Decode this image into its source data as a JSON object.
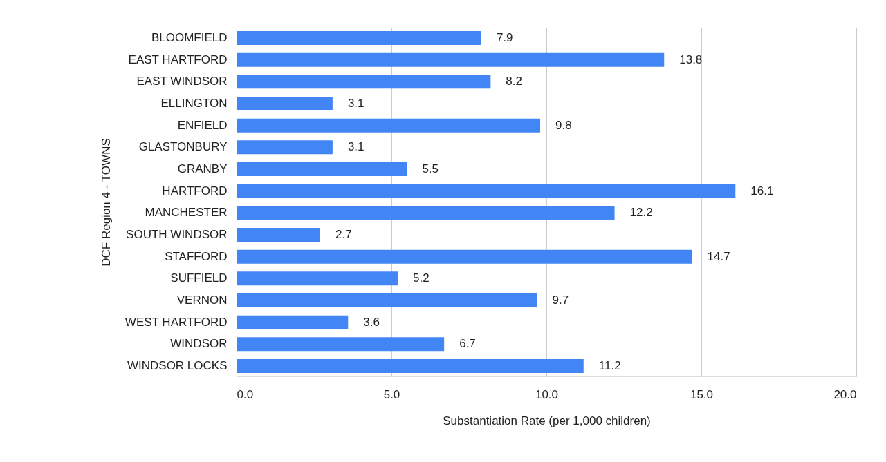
{
  "chart_data": {
    "type": "bar",
    "orientation": "horizontal",
    "xlabel": "Substantiation Rate (per 1,000 children)",
    "ylabel": "DCF Region 4 - TOWNS",
    "categories": [
      "BLOOMFIELD",
      "EAST HARTFORD",
      "EAST WINDSOR",
      "ELLINGTON",
      "ENFIELD",
      "GLASTONBURY",
      "GRANBY",
      "HARTFORD",
      "MANCHESTER",
      "SOUTH WINDSOR",
      "STAFFORD",
      "SUFFIELD",
      "VERNON",
      "WEST HARTFORD",
      "WINDSOR",
      "WINDSOR LOCKS"
    ],
    "values": [
      7.9,
      13.8,
      8.2,
      3.1,
      9.8,
      3.1,
      5.5,
      16.1,
      12.2,
      2.7,
      14.7,
      5.2,
      9.7,
      3.6,
      6.7,
      11.2
    ],
    "color": "#4285f4",
    "xlim": [
      0,
      20
    ],
    "xticks": [
      {
        "value": 0,
        "label": "0.0"
      },
      {
        "value": 5,
        "label": "5.0"
      },
      {
        "value": 10,
        "label": "10.0"
      },
      {
        "value": 15,
        "label": "15.0"
      },
      {
        "value": 20,
        "label": "20.0"
      }
    ],
    "grid": "x",
    "data_labels": true
  }
}
